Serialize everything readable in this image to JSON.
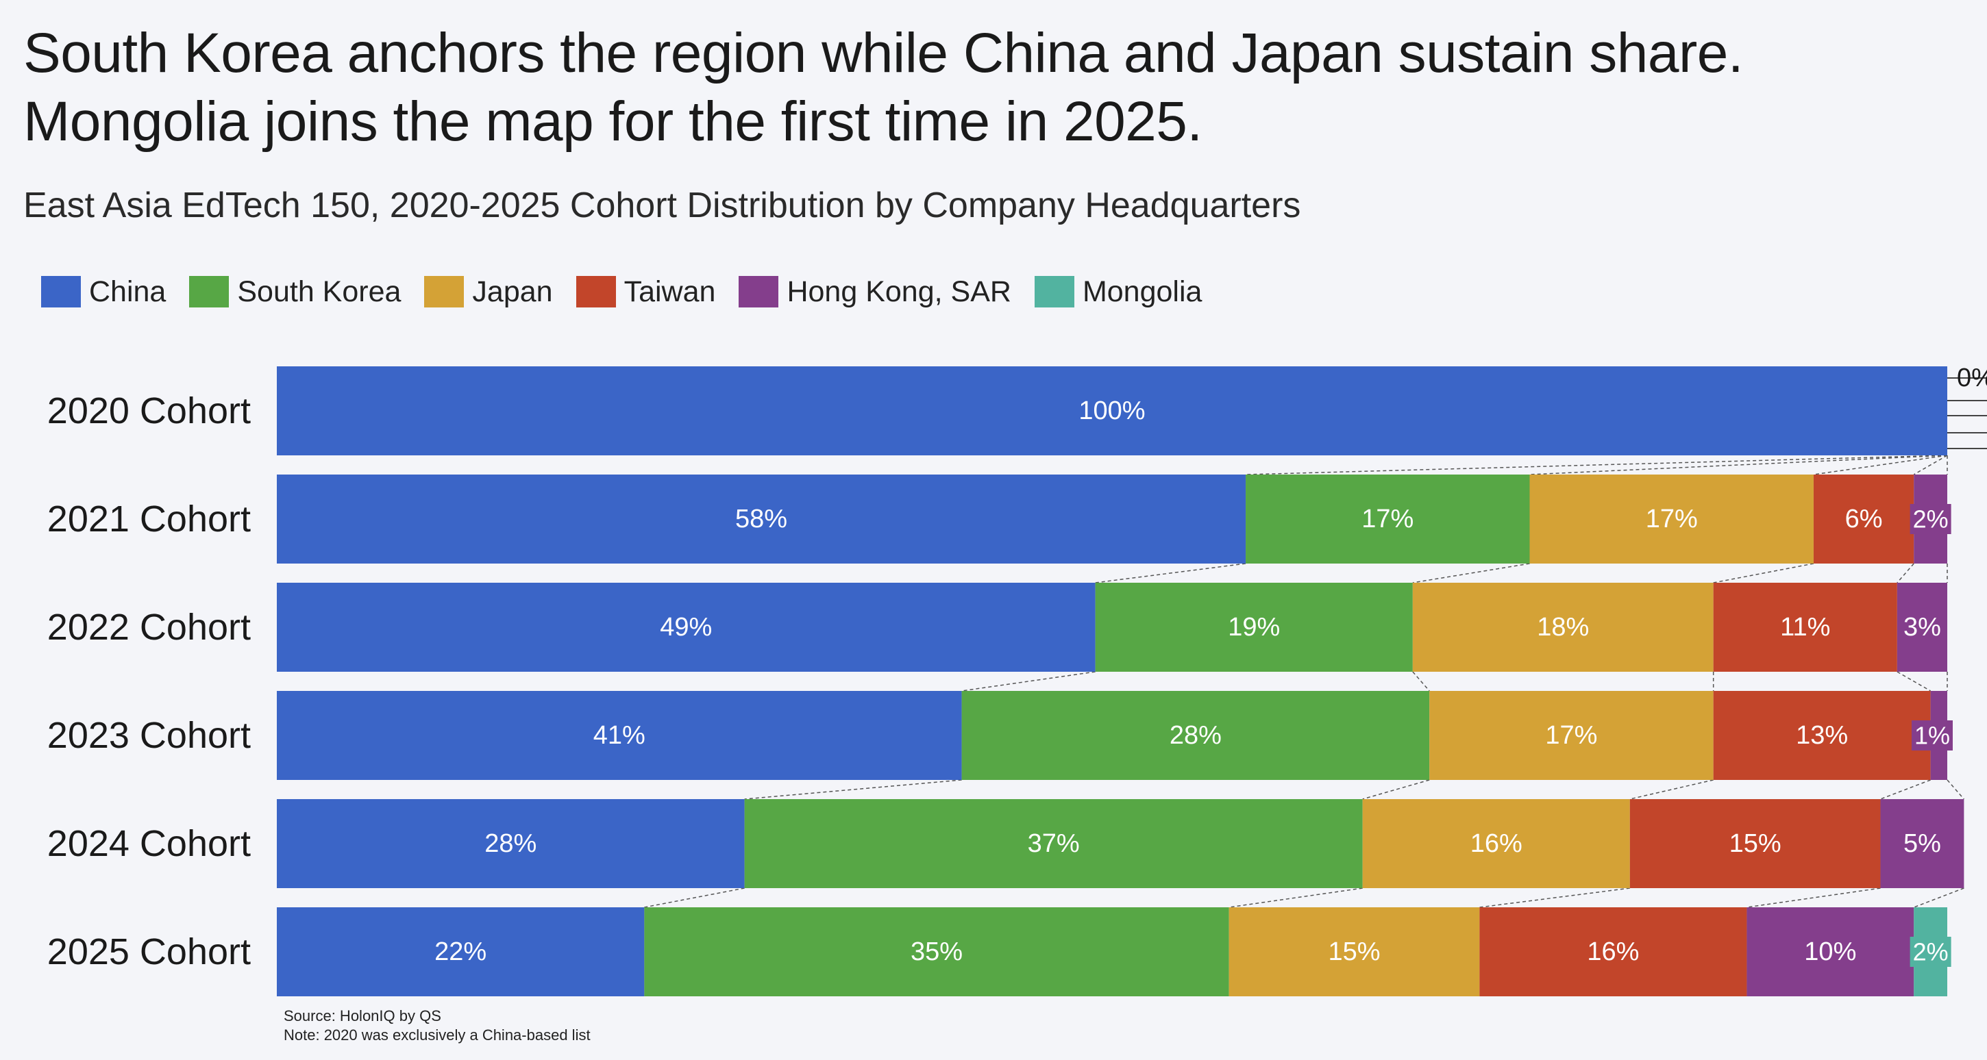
{
  "chart_data": {
    "type": "bar",
    "orientation": "horizontal",
    "stacked": true,
    "normalized": true,
    "title": "South Korea anchors the region while China and Japan sustain share. Mongolia joins the map for the first time in 2025.",
    "subtitle": "East Asia EdTech 150, 2020-2025 Cohort Distribution by Company Headquarters",
    "categories": [
      "2020 Cohort",
      "2021 Cohort",
      "2022 Cohort",
      "2023 Cohort",
      "2024 Cohort",
      "2025 Cohort"
    ],
    "series": [
      {
        "name": "China",
        "color": "#3b65c7",
        "values": [
          100,
          58,
          49,
          41,
          28,
          22
        ],
        "labels": [
          "100%",
          "58%",
          "49%",
          "41%",
          "28%",
          "22%"
        ]
      },
      {
        "name": "South Korea",
        "color": "#57a745",
        "values": [
          0,
          17,
          19,
          28,
          37,
          35
        ],
        "labels": [
          "",
          "17%",
          "19%",
          "28%",
          "37%",
          "35%"
        ]
      },
      {
        "name": "Japan",
        "color": "#d4a236",
        "values": [
          0,
          17,
          18,
          17,
          16,
          15
        ],
        "labels": [
          "",
          "17%",
          "18%",
          "17%",
          "16%",
          "15%"
        ]
      },
      {
        "name": "Taiwan",
        "color": "#c2452a",
        "values": [
          0,
          6,
          11,
          13,
          15,
          16
        ],
        "labels": [
          "",
          "6%",
          "11%",
          "13%",
          "15%",
          "16%"
        ]
      },
      {
        "name": "Hong Kong, SAR",
        "color": "#843e8c",
        "values": [
          0,
          2,
          3,
          1,
          5,
          10
        ],
        "labels": [
          "",
          "2%",
          "3%",
          "1%",
          "5%",
          "10%"
        ]
      },
      {
        "name": "Mongolia",
        "color": "#52b3a0",
        "values": [
          0,
          0,
          0,
          0,
          0,
          2
        ],
        "labels": [
          "",
          "",
          "",
          "",
          "",
          "2%"
        ]
      }
    ],
    "zero_label": "0%",
    "legend": "top-left",
    "xlim": [
      0,
      100
    ]
  },
  "footer": {
    "source": "Source: HolonIQ by QS",
    "note": "Note: 2020 was exclusively a China-based list"
  }
}
